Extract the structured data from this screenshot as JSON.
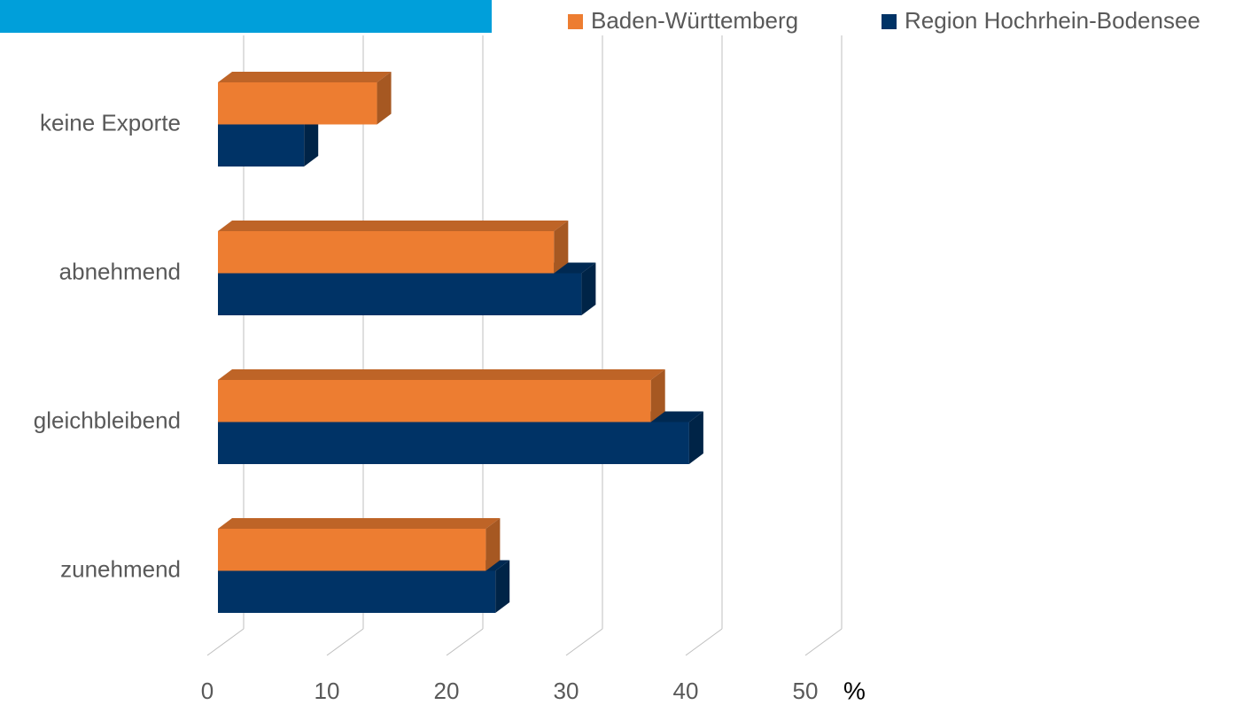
{
  "chart_data": {
    "type": "bar3d_horizontal",
    "categories": [
      "keine Exporte",
      "abnehmend",
      "gleichbleibend",
      "zunehmend"
    ],
    "series": [
      {
        "name": "Baden-Württemberg",
        "color": "#ed7d31",
        "values": [
          13.3,
          28.1,
          36.2,
          22.4
        ]
      },
      {
        "name": "Region Hochrhein-Bodensee",
        "color": "#003366",
        "values": [
          7.2,
          30.4,
          39.4,
          23.2
        ]
      }
    ],
    "xlim": [
      0,
      50
    ],
    "xticks": [
      0,
      10,
      20,
      30,
      40,
      50
    ],
    "x_unit": "%",
    "grid": true,
    "legend": "top-right"
  }
}
